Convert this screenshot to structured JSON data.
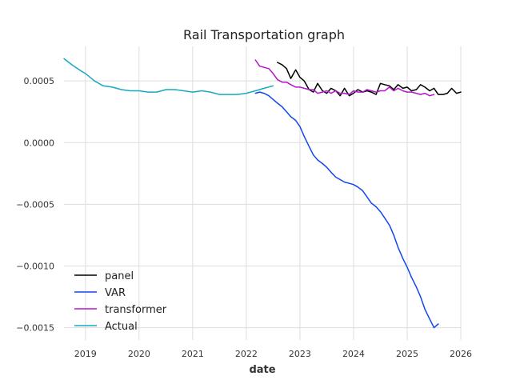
{
  "chart_data": {
    "type": "line",
    "title": "Rail Transportation graph",
    "xlabel": "date",
    "ylabel": "",
    "xlim": [
      2018.6,
      2026.0
    ],
    "ylim": [
      -0.0016,
      0.00078
    ],
    "grid": true,
    "legend_position": "bottom-left",
    "x_ticks": [
      2019,
      2020,
      2021,
      2022,
      2023,
      2024,
      2025,
      2026
    ],
    "x_tick_labels": [
      "2019",
      "2020",
      "2021",
      "2022",
      "2023",
      "2024",
      "2025",
      "2026"
    ],
    "y_ticks": [
      0.0005,
      0.0,
      -0.0005,
      -0.001,
      -0.0015
    ],
    "y_tick_labels": [
      "0.0005",
      "0.0000",
      "−0.0005",
      "−0.0010",
      "−0.0015"
    ],
    "series": [
      {
        "name": "panel",
        "color": "#000000",
        "x": [
          2022.58,
          2022.67,
          2022.75,
          2022.83,
          2022.92,
          2023.0,
          2023.08,
          2023.17,
          2023.25,
          2023.33,
          2023.42,
          2023.5,
          2023.58,
          2023.67,
          2023.75,
          2023.83,
          2023.92,
          2024.0,
          2024.08,
          2024.17,
          2024.25,
          2024.33,
          2024.42,
          2024.5,
          2024.58,
          2024.67,
          2024.75,
          2024.83,
          2024.92,
          2025.0,
          2025.08,
          2025.17,
          2025.25,
          2025.33,
          2025.42,
          2025.5,
          2025.58,
          2025.67,
          2025.75,
          2025.83,
          2025.92,
          2026.0
        ],
        "values": [
          0.00065,
          0.00063,
          0.0006,
          0.00052,
          0.00059,
          0.00053,
          0.0005,
          0.00043,
          0.00041,
          0.00048,
          0.00042,
          0.0004,
          0.00044,
          0.00042,
          0.00038,
          0.00044,
          0.00038,
          0.0004,
          0.00043,
          0.00041,
          0.00042,
          0.00041,
          0.00039,
          0.00048,
          0.00047,
          0.00046,
          0.00043,
          0.00047,
          0.00044,
          0.00045,
          0.00042,
          0.00043,
          0.00047,
          0.00045,
          0.00042,
          0.00044,
          0.00039,
          0.00039,
          0.0004,
          0.00044,
          0.0004,
          0.00041
        ]
      },
      {
        "name": "VAR",
        "color": "#1147ee",
        "x": [
          2022.17,
          2022.25,
          2022.33,
          2022.42,
          2022.5,
          2022.58,
          2022.67,
          2022.75,
          2022.83,
          2022.92,
          2023.0,
          2023.08,
          2023.17,
          2023.25,
          2023.33,
          2023.42,
          2023.5,
          2023.58,
          2023.67,
          2023.75,
          2023.83,
          2023.92,
          2024.0,
          2024.08,
          2024.17,
          2024.25,
          2024.33,
          2024.42,
          2024.5,
          2024.58,
          2024.67,
          2024.75,
          2024.83,
          2024.92,
          2025.0,
          2025.08,
          2025.17,
          2025.25,
          2025.33,
          2025.42,
          2025.5,
          2025.58
        ],
        "values": [
          0.0004,
          0.00041,
          0.0004,
          0.00038,
          0.00035,
          0.00032,
          0.00029,
          0.00025,
          0.00021,
          0.00018,
          0.00013,
          5e-05,
          -3e-05,
          -0.0001,
          -0.00014,
          -0.00017,
          -0.0002,
          -0.00024,
          -0.00028,
          -0.0003,
          -0.00032,
          -0.00033,
          -0.00034,
          -0.00036,
          -0.00039,
          -0.00044,
          -0.00049,
          -0.00052,
          -0.00056,
          -0.00061,
          -0.00067,
          -0.00075,
          -0.00085,
          -0.00094,
          -0.00101,
          -0.00109,
          -0.00117,
          -0.00125,
          -0.00135,
          -0.00143,
          -0.0015,
          -0.00147
        ]
      },
      {
        "name": "transformer",
        "color": "#b515c8",
        "x": [
          2022.17,
          2022.25,
          2022.33,
          2022.42,
          2022.5,
          2022.58,
          2022.67,
          2022.75,
          2022.83,
          2022.92,
          2023.0,
          2023.08,
          2023.17,
          2023.25,
          2023.33,
          2023.42,
          2023.5,
          2023.58,
          2023.67,
          2023.75,
          2023.83,
          2023.92,
          2024.0,
          2024.08,
          2024.17,
          2024.25,
          2024.33,
          2024.42,
          2024.5,
          2024.58,
          2024.67,
          2024.75,
          2024.83,
          2024.92,
          2025.0,
          2025.08,
          2025.17,
          2025.25,
          2025.33,
          2025.42,
          2025.5
        ],
        "values": [
          0.00067,
          0.00062,
          0.00061,
          0.0006,
          0.00056,
          0.00051,
          0.00049,
          0.00049,
          0.00047,
          0.00045,
          0.00045,
          0.00044,
          0.00043,
          0.00043,
          0.0004,
          0.00041,
          0.00042,
          0.0004,
          0.00042,
          0.0004,
          0.0004,
          0.00039,
          0.00042,
          0.00041,
          0.00041,
          0.00043,
          0.00042,
          0.00041,
          0.00042,
          0.00042,
          0.00045,
          0.00042,
          0.00044,
          0.00042,
          0.00041,
          0.00041,
          0.0004,
          0.00039,
          0.0004,
          0.00038,
          0.00039
        ]
      },
      {
        "name": "Actual",
        "color": "#17a9c0",
        "x": [
          2018.6,
          2018.75,
          2018.92,
          2019.0,
          2019.17,
          2019.33,
          2019.5,
          2019.67,
          2019.83,
          2020.0,
          2020.17,
          2020.33,
          2020.5,
          2020.67,
          2020.83,
          2021.0,
          2021.17,
          2021.33,
          2021.5,
          2021.67,
          2021.83,
          2022.0,
          2022.17,
          2022.33,
          2022.5
        ],
        "values": [
          0.00068,
          0.00063,
          0.00058,
          0.00056,
          0.0005,
          0.00046,
          0.00045,
          0.00043,
          0.00042,
          0.00042,
          0.00041,
          0.00041,
          0.00043,
          0.00043,
          0.00042,
          0.00041,
          0.00042,
          0.00041,
          0.00039,
          0.00039,
          0.00039,
          0.0004,
          0.00042,
          0.00044,
          0.00046
        ]
      }
    ]
  }
}
